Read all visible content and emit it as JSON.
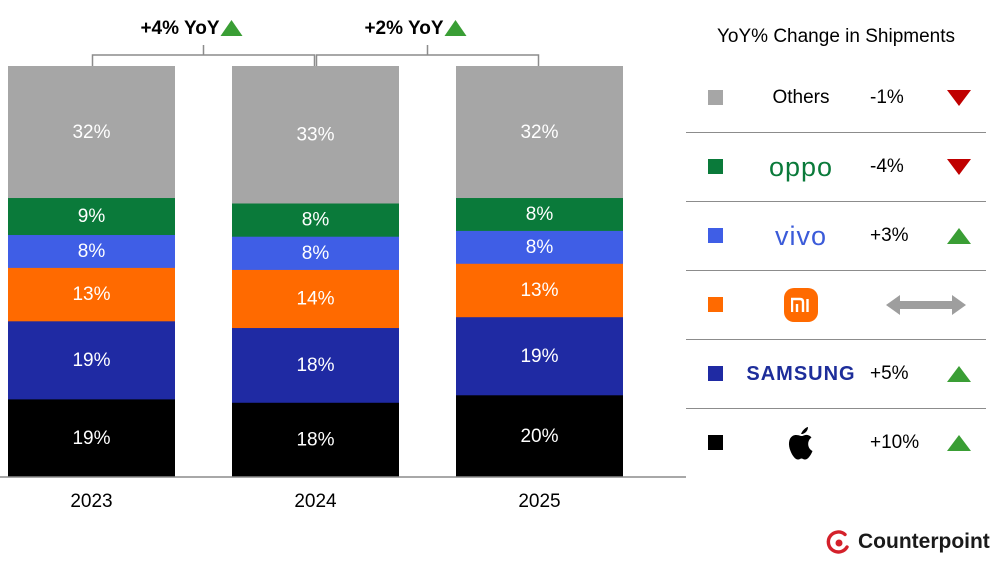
{
  "chart_data": {
    "type": "bar",
    "stacked": true,
    "normalized_percent": true,
    "categories": [
      "2023",
      "2024",
      "2025"
    ],
    "series": [
      {
        "name": "Apple",
        "color": "#000000",
        "values": [
          19,
          18,
          20
        ],
        "labels": [
          "19%",
          "18%",
          "20%"
        ]
      },
      {
        "name": "Samsung",
        "color": "#1f2aa3",
        "values": [
          19,
          18,
          19
        ],
        "labels": [
          "19%",
          "18%",
          "19%"
        ]
      },
      {
        "name": "Xiaomi",
        "color": "#ff6a00",
        "values": [
          13,
          14,
          13
        ],
        "labels": [
          "13%",
          "14%",
          "13%"
        ]
      },
      {
        "name": "vivo",
        "color": "#3f5ee6",
        "values": [
          8,
          8,
          8
        ],
        "labels": [
          "8%",
          "8%",
          "8%"
        ]
      },
      {
        "name": "OPPO",
        "color": "#0a7a3a",
        "values": [
          9,
          8,
          8
        ],
        "labels": [
          "9%",
          "8%",
          "8%"
        ]
      },
      {
        "name": "Others",
        "color": "#a6a6a6",
        "values": [
          32,
          33,
          32
        ],
        "labels": [
          "32%",
          "33%",
          "32%"
        ]
      }
    ],
    "annotations": [
      {
        "between": [
          "2023",
          "2024"
        ],
        "text": "+4% YoY",
        "direction": "up"
      },
      {
        "between": [
          "2024",
          "2025"
        ],
        "text": "+2% YoY",
        "direction": "up"
      }
    ]
  },
  "legend": {
    "title": "YoY% Change in Shipments",
    "rows": [
      {
        "brand": "Others",
        "brand_display": "Others",
        "change": "-1%",
        "trend": "down",
        "color": "#a6a6a6"
      },
      {
        "brand": "OPPO",
        "brand_display": "oppo",
        "change": "-4%",
        "trend": "down",
        "color": "#0a7a3a"
      },
      {
        "brand": "vivo",
        "brand_display": "vivo",
        "change": "+3%",
        "trend": "up",
        "color": "#3f5ee6"
      },
      {
        "brand": "Xiaomi",
        "brand_display": "mi",
        "change": "",
        "trend": "flat",
        "color": "#ff6a00"
      },
      {
        "brand": "Samsung",
        "brand_display": "SAMSUNG",
        "change": "+5%",
        "trend": "up",
        "color": "#1f2aa3"
      },
      {
        "brand": "Apple",
        "brand_display": "",
        "change": "+10%",
        "trend": "up",
        "color": "#000000"
      }
    ]
  },
  "footer": {
    "logo_text": "Counterpoint"
  },
  "colors": {
    "up": "#3a9e35",
    "down": "#c00000",
    "flat": "#9e9e9e",
    "divider": "#8c8c8c"
  }
}
